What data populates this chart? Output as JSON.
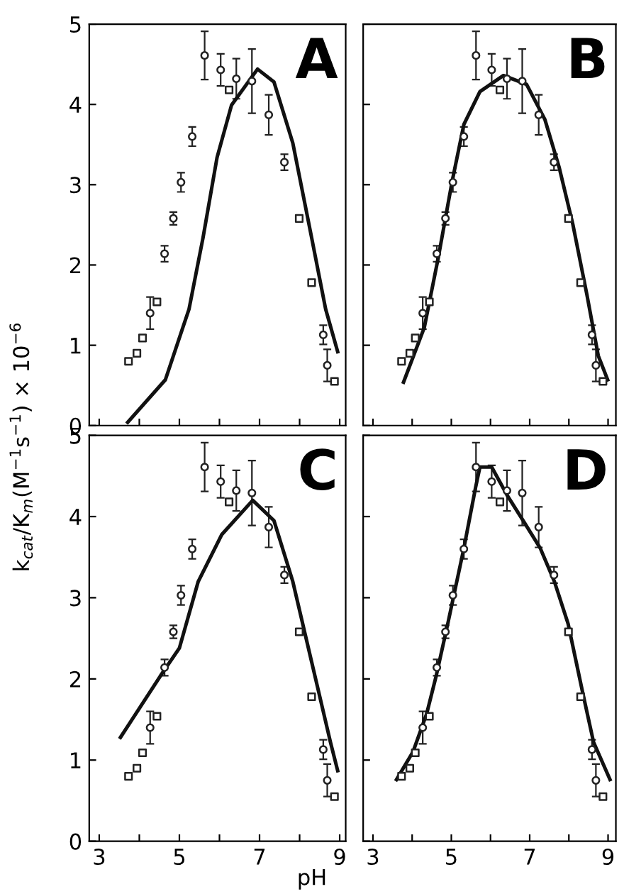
{
  "chart_data": [
    {
      "type": "scatter",
      "title": "A",
      "ylabel": "k$_{cat}$/K$_{m}$(M$^{−1}$s$^{−1}$) × 10$^{−6}$",
      "xlim": [
        2.75,
        9.15
      ],
      "ylim": [
        0,
        5
      ],
      "xticks": [
        3,
        {
          "value": 4,
          "label": null
        },
        5,
        {
          "value": 6,
          "label": null
        },
        7,
        {
          "value": 8,
          "label": null
        },
        9
      ],
      "yticks": [
        0,
        1,
        2,
        3,
        4,
        5
      ],
      "tick_labels": "y",
      "grid": false,
      "series": [
        {
          "marker": "circle",
          "color": "#222222",
          "x": [
            4.27,
            4.63,
            4.85,
            5.04,
            5.32,
            5.63,
            6.03,
            6.42,
            6.81,
            7.23,
            7.62,
            8.59,
            8.69
          ],
          "values": [
            1.4,
            2.14,
            2.58,
            3.03,
            3.6,
            4.61,
            4.43,
            4.32,
            4.29,
            3.87,
            3.28,
            1.13,
            0.75
          ],
          "errors": [
            0.2,
            0.1,
            0.08,
            0.12,
            0.12,
            0.3,
            0.2,
            0.25,
            0.4,
            0.25,
            0.1,
            0.12,
            0.2
          ]
        },
        {
          "marker": "square",
          "color": "#222222",
          "x": [
            3.73,
            3.94,
            4.08,
            4.44,
            6.24,
            7.99,
            8.3,
            8.87
          ],
          "values": [
            0.8,
            0.9,
            1.09,
            1.54,
            4.18,
            2.58,
            1.78,
            0.55
          ]
        },
        {
          "type": "line",
          "marker": "none",
          "color": "#111111",
          "x": [
            3.71,
            4.65,
            5.24,
            5.59,
            5.94,
            6.3,
            6.95,
            7.36,
            7.83,
            8.3,
            8.65,
            8.95
          ],
          "values": [
            0.04,
            0.57,
            1.45,
            2.34,
            3.34,
            3.99,
            4.44,
            4.28,
            3.52,
            2.34,
            1.45,
            0.92
          ]
        }
      ]
    },
    {
      "type": "scatter",
      "title": "B",
      "xlim": [
        2.75,
        9.2
      ],
      "ylim": [
        0,
        5
      ],
      "xticks": [
        3,
        {
          "value": 4,
          "label": null
        },
        5,
        {
          "value": 6,
          "label": null
        },
        7,
        {
          "value": 8,
          "label": null
        },
        9
      ],
      "yticks": [
        0,
        1,
        2,
        3,
        4,
        5
      ],
      "tick_labels": false,
      "grid": false,
      "series": [
        {
          "marker": "circle",
          "color": "#222222",
          "x": [
            4.27,
            4.63,
            4.85,
            5.04,
            5.32,
            5.63,
            6.03,
            6.42,
            6.81,
            7.23,
            7.62,
            8.59,
            8.69
          ],
          "values": [
            1.4,
            2.14,
            2.58,
            3.03,
            3.6,
            4.61,
            4.43,
            4.32,
            4.29,
            3.87,
            3.28,
            1.13,
            0.75
          ],
          "errors": [
            0.2,
            0.1,
            0.08,
            0.12,
            0.12,
            0.3,
            0.2,
            0.25,
            0.4,
            0.25,
            0.1,
            0.12,
            0.2
          ]
        },
        {
          "marker": "square",
          "color": "#222222",
          "x": [
            3.73,
            3.94,
            4.08,
            4.44,
            6.24,
            7.99,
            8.3,
            8.87
          ],
          "values": [
            0.8,
            0.9,
            1.09,
            1.54,
            4.18,
            2.58,
            1.78,
            0.55
          ]
        },
        {
          "type": "line",
          "marker": "none",
          "color": "#111111",
          "x": [
            3.78,
            4.31,
            4.67,
            5.02,
            5.32,
            5.73,
            6.33,
            6.92,
            7.39,
            7.75,
            8.1,
            8.46,
            8.75,
            8.99
          ],
          "values": [
            0.54,
            1.22,
            2.1,
            3.04,
            3.75,
            4.16,
            4.36,
            4.25,
            3.81,
            3.22,
            2.51,
            1.63,
            0.87,
            0.57
          ]
        }
      ]
    },
    {
      "type": "scatter",
      "title": "C",
      "xlabel": "pH",
      "xlim": [
        2.75,
        9.15
      ],
      "ylim": [
        0,
        5
      ],
      "xticks": [
        3,
        {
          "value": 4,
          "label": null
        },
        5,
        {
          "value": 6,
          "label": null
        },
        7,
        {
          "value": 8,
          "label": null
        },
        9
      ],
      "yticks": [
        0,
        1,
        2,
        3,
        4,
        5
      ],
      "grid": false,
      "series": [
        {
          "marker": "circle",
          "color": "#222222",
          "x": [
            4.27,
            4.63,
            4.85,
            5.04,
            5.32,
            5.63,
            6.03,
            6.42,
            6.81,
            7.23,
            7.62,
            8.59,
            8.69
          ],
          "values": [
            1.4,
            2.14,
            2.58,
            3.03,
            3.6,
            4.61,
            4.43,
            4.32,
            4.29,
            3.87,
            3.28,
            1.13,
            0.75
          ],
          "errors": [
            0.2,
            0.1,
            0.08,
            0.12,
            0.12,
            0.3,
            0.2,
            0.25,
            0.4,
            0.25,
            0.1,
            0.12,
            0.2
          ]
        },
        {
          "marker": "square",
          "color": "#222222",
          "x": [
            3.73,
            3.94,
            4.08,
            4.44,
            6.24,
            7.99,
            8.3,
            8.87
          ],
          "values": [
            0.8,
            0.9,
            1.09,
            1.54,
            4.18,
            2.58,
            1.78,
            0.55
          ]
        },
        {
          "type": "line",
          "marker": "none",
          "color": "#111111",
          "x": [
            3.53,
            4.53,
            5.0,
            5.47,
            6.06,
            6.83,
            7.36,
            7.83,
            8.3,
            8.77,
            8.95
          ],
          "values": [
            1.28,
            2.04,
            2.38,
            3.2,
            3.78,
            4.2,
            3.95,
            3.2,
            2.21,
            1.22,
            0.87
          ]
        }
      ]
    },
    {
      "type": "scatter",
      "title": "D",
      "xlim": [
        2.75,
        9.2
      ],
      "ylim": [
        0,
        5
      ],
      "xticks": [
        3,
        {
          "value": 4,
          "label": null
        },
        5,
        {
          "value": 6,
          "label": null
        },
        7,
        {
          "value": 8,
          "label": null
        },
        9
      ],
      "yticks": [
        0,
        1,
        2,
        3,
        4,
        5
      ],
      "tick_labels": "x",
      "grid": false,
      "series": [
        {
          "marker": "circle",
          "color": "#222222",
          "x": [
            4.27,
            4.63,
            4.85,
            5.04,
            5.32,
            5.63,
            6.03,
            6.42,
            6.81,
            7.23,
            7.62,
            8.59,
            8.69
          ],
          "values": [
            1.4,
            2.14,
            2.58,
            3.03,
            3.6,
            4.61,
            4.43,
            4.32,
            4.29,
            3.87,
            3.28,
            1.13,
            0.75
          ],
          "errors": [
            0.2,
            0.1,
            0.08,
            0.12,
            0.12,
            0.3,
            0.2,
            0.25,
            0.4,
            0.25,
            0.1,
            0.12,
            0.2
          ]
        },
        {
          "marker": "square",
          "color": "#222222",
          "x": [
            3.73,
            3.94,
            4.08,
            4.44,
            6.24,
            7.99,
            8.3,
            8.87
          ],
          "values": [
            0.8,
            0.9,
            1.09,
            1.54,
            4.18,
            2.58,
            1.78,
            0.55
          ]
        },
        {
          "type": "line",
          "marker": "none",
          "color": "#111111",
          "x": [
            3.6,
            4.02,
            4.37,
            4.61,
            4.91,
            5.32,
            5.62,
            5.73,
            6.03,
            6.44,
            6.86,
            7.27,
            7.63,
            7.98,
            8.34,
            8.63,
            9.05
          ],
          "values": [
            0.76,
            1.1,
            1.57,
            2.03,
            2.68,
            3.61,
            4.36,
            4.61,
            4.61,
            4.25,
            3.93,
            3.61,
            3.2,
            2.68,
            1.86,
            1.22,
            0.76
          ]
        }
      ]
    }
  ]
}
